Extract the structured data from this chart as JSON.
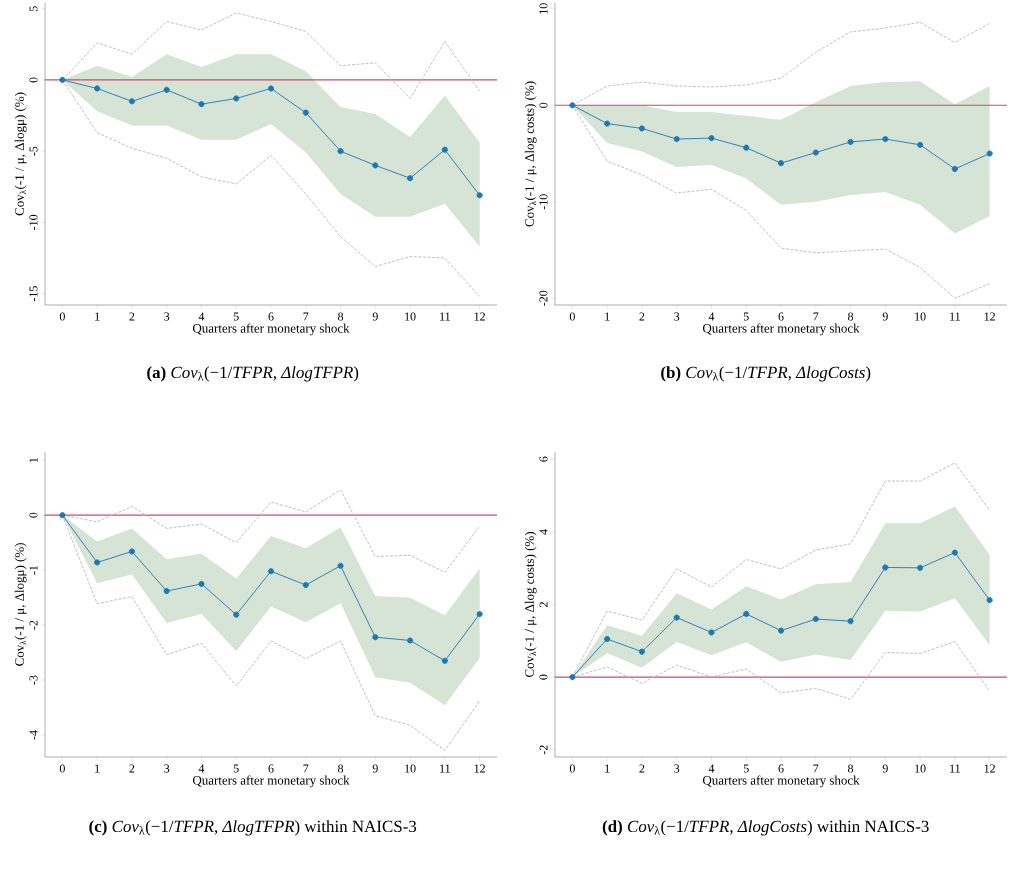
{
  "chart_data": [
    {
      "type": "line",
      "title": "**(a)** *Cov*$_{λ}$(−1/*TFPR*, *ΔlogTFPR*)",
      "xlabel": "Quarters after monetary shock",
      "ylabel": "Cov$_{λ}$(-1 / μ, Δlogμ) (%)",
      "x": [
        0,
        1,
        2,
        3,
        4,
        5,
        6,
        7,
        8,
        9,
        10,
        11,
        12
      ],
      "xlim": [
        -0.5,
        12.5
      ],
      "xticks": [
        0,
        1,
        2,
        3,
        4,
        5,
        6,
        7,
        8,
        9,
        10,
        11,
        12
      ],
      "ylim": [
        -15.8,
        5.4
      ],
      "yticks": [
        -15,
        -10,
        -5,
        0,
        5
      ],
      "ref_lines": [
        {
          "axis": "y",
          "value": 0,
          "color": "#d6466e"
        }
      ],
      "series": [
        {
          "color": "#b9b9b9",
          "line_style": "dashed",
          "marker": "none",
          "values": [
            0,
            2.6,
            1.8,
            4.1,
            3.5,
            4.7,
            4.1,
            3.4,
            1.0,
            1.2,
            -1.3,
            2.7,
            -0.8
          ]
        },
        {
          "color": "#b9b9b9",
          "line_style": "dashed",
          "marker": "none",
          "values": [
            0,
            -3.7,
            -4.8,
            -5.5,
            -6.8,
            -7.3,
            -5.3,
            -8.0,
            -11.0,
            -13.1,
            -12.4,
            -12.5,
            -15.2
          ]
        },
        {
          "color": "#1f77b4",
          "line_style": "solid",
          "marker": "circle",
          "values": [
            0,
            -0.6,
            -1.5,
            -0.7,
            -1.7,
            -1.3,
            -0.6,
            -2.3,
            -5.0,
            -6.0,
            -6.9,
            -4.9,
            -8.1
          ],
          "lower": [
            0,
            -2.2,
            -3.2,
            -3.2,
            -4.2,
            -4.2,
            -3.1,
            -5.1,
            -8.0,
            -9.6,
            -9.6,
            -8.7,
            -11.7
          ],
          "upper": [
            0,
            1.0,
            0.2,
            1.8,
            0.9,
            1.8,
            1.8,
            0.6,
            -1.9,
            -2.4,
            -4.0,
            -1.1,
            -4.4
          ]
        }
      ]
    },
    {
      "type": "line",
      "title": "**(b)** *Cov*$_{λ}$(−1/*TFPR*, *ΔlogCosts*)",
      "xlabel": "Quarters after monetary shock",
      "ylabel": "Cov$_{λ}$(-1 / μ, Δlog costs) (%)",
      "x": [
        0,
        1,
        2,
        3,
        4,
        5,
        6,
        7,
        8,
        9,
        10,
        11,
        12
      ],
      "xlim": [
        -0.5,
        12.5
      ],
      "xticks": [
        0,
        1,
        2,
        3,
        4,
        5,
        6,
        7,
        8,
        9,
        10,
        11,
        12
      ],
      "ylim": [
        -20.7,
        10.6
      ],
      "yticks": [
        -20,
        -10,
        0,
        10
      ],
      "ref_lines": [
        {
          "axis": "y",
          "value": 0,
          "color": "#d6466e"
        }
      ],
      "series": [
        {
          "color": "#b9b9b9",
          "line_style": "dashed",
          "marker": "none",
          "values": [
            0,
            2.0,
            2.4,
            2.0,
            1.9,
            2.1,
            2.8,
            5.5,
            7.6,
            8.0,
            8.6,
            6.5,
            8.5
          ]
        },
        {
          "color": "#b9b9b9",
          "line_style": "dashed",
          "marker": "none",
          "values": [
            0,
            -5.8,
            -7.2,
            -9.1,
            -8.7,
            -10.9,
            -14.8,
            -15.3,
            -15.1,
            -14.9,
            -16.8,
            -20.0,
            -18.5
          ]
        },
        {
          "color": "#1f77b4",
          "line_style": "solid",
          "marker": "circle",
          "values": [
            0,
            -1.9,
            -2.4,
            -3.5,
            -3.4,
            -4.4,
            -6.0,
            -4.9,
            -3.8,
            -3.5,
            -4.1,
            -6.6,
            -5.0
          ],
          "lower": [
            0,
            -3.9,
            -4.8,
            -6.4,
            -6.2,
            -7.6,
            -10.3,
            -10.0,
            -9.3,
            -9.0,
            -10.3,
            -13.3,
            -11.5
          ],
          "upper": [
            0,
            0,
            0,
            -0.7,
            -0.7,
            -1.1,
            -1.5,
            0.3,
            2.0,
            2.4,
            2.5,
            0.1,
            2.0
          ]
        }
      ]
    },
    {
      "type": "line",
      "title": "**(c)** *Cov*$_{λ}$(−1/*TFPR*, *ΔlogTFPR*) within NAICS-3",
      "xlabel": "Quarters after monetary shock",
      "ylabel": "Cov$_{λ}$(-1 / μ, Δlogμ) (%)",
      "x": [
        0,
        1,
        2,
        3,
        4,
        5,
        6,
        7,
        8,
        9,
        10,
        11,
        12
      ],
      "xlim": [
        -0.5,
        12.5
      ],
      "xticks": [
        0,
        1,
        2,
        3,
        4,
        5,
        6,
        7,
        8,
        9,
        10,
        11,
        12
      ],
      "ylim": [
        -4.4,
        1.15
      ],
      "yticks": [
        -4,
        -3,
        -2,
        -1,
        0,
        1
      ],
      "ref_lines": [
        {
          "axis": "y",
          "value": 0,
          "color": "#d6466e"
        }
      ],
      "series": [
        {
          "color": "#b9b9b9",
          "line_style": "dashed",
          "marker": "none",
          "values": [
            0,
            -0.12,
            0.16,
            -0.24,
            -0.16,
            -0.5,
            0.24,
            0.06,
            0.46,
            -0.75,
            -0.73,
            -1.04,
            -0.2
          ]
        },
        {
          "color": "#b9b9b9",
          "line_style": "dashed",
          "marker": "none",
          "values": [
            0,
            -1.61,
            -1.48,
            -2.54,
            -2.33,
            -3.11,
            -2.29,
            -2.61,
            -2.29,
            -3.65,
            -3.82,
            -4.28,
            -3.38
          ]
        },
        {
          "color": "#1f77b4",
          "line_style": "solid",
          "marker": "circle",
          "values": [
            0,
            -0.86,
            -0.66,
            -1.38,
            -1.25,
            -1.81,
            -1.02,
            -1.27,
            -0.92,
            -2.22,
            -2.28,
            -2.65,
            -1.8
          ],
          "lower": [
            0,
            -1.24,
            -1.08,
            -1.96,
            -1.8,
            -2.47,
            -1.66,
            -1.95,
            -1.6,
            -2.95,
            -3.05,
            -3.46,
            -2.6
          ],
          "upper": [
            0,
            -0.48,
            -0.24,
            -0.8,
            -0.7,
            -1.15,
            -0.38,
            -0.6,
            -0.22,
            -1.47,
            -1.5,
            -1.82,
            -0.97
          ]
        }
      ]
    },
    {
      "type": "line",
      "title": "**(d)** *Cov*$_{λ}$(−1/*TFPR*, *ΔlogCosts*) within NAICS-3",
      "xlabel": "Quarters after monetary shock",
      "ylabel": "Cov$_{λ}$(-1 / μ, Δlog costs) (%)",
      "x": [
        0,
        1,
        2,
        3,
        4,
        5,
        6,
        7,
        8,
        9,
        10,
        11,
        12
      ],
      "xlim": [
        -0.5,
        12.5
      ],
      "xticks": [
        0,
        1,
        2,
        3,
        4,
        5,
        6,
        7,
        8,
        9,
        10,
        11,
        12
      ],
      "ylim": [
        -2.2,
        6.2
      ],
      "yticks": [
        -2,
        0,
        2,
        4,
        6
      ],
      "ref_lines": [
        {
          "axis": "y",
          "value": 0,
          "color": "#d6466e"
        }
      ],
      "series": [
        {
          "color": "#b9b9b9",
          "line_style": "dashed",
          "marker": "none",
          "values": [
            0,
            1.82,
            1.57,
            2.98,
            2.48,
            3.24,
            2.98,
            3.5,
            3.67,
            5.4,
            5.4,
            5.9,
            4.6
          ]
        },
        {
          "color": "#b9b9b9",
          "line_style": "dashed",
          "marker": "none",
          "values": [
            0,
            0.28,
            -0.17,
            0.33,
            0.01,
            0.22,
            -0.43,
            -0.31,
            -0.61,
            0.68,
            0.65,
            0.98,
            -0.38
          ]
        },
        {
          "color": "#1f77b4",
          "line_style": "solid",
          "marker": "circle",
          "values": [
            0,
            1.05,
            0.7,
            1.64,
            1.23,
            1.74,
            1.28,
            1.6,
            1.54,
            3.02,
            3.01,
            3.43,
            2.12
          ],
          "lower": [
            0,
            0.66,
            0.26,
            0.97,
            0.6,
            0.96,
            0.42,
            0.62,
            0.47,
            1.83,
            1.81,
            2.17,
            0.88
          ],
          "upper": [
            0,
            1.43,
            1.14,
            2.31,
            1.86,
            2.5,
            2.14,
            2.56,
            2.62,
            4.24,
            4.24,
            4.7,
            3.37
          ]
        }
      ]
    }
  ]
}
